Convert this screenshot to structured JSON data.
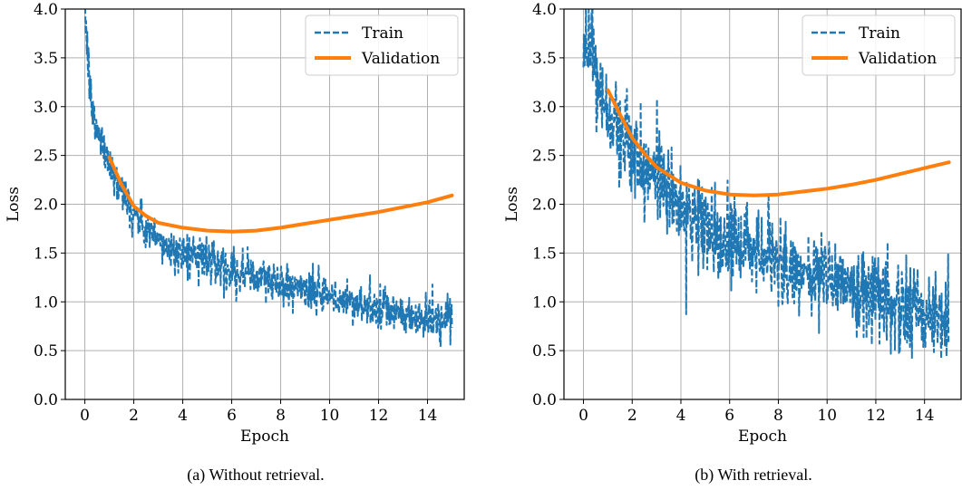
{
  "chart_data": [
    {
      "type": "line",
      "caption": "(a) Without retrieval.",
      "xlabel": "Epoch",
      "ylabel": "Loss",
      "xlim": [
        -0.8,
        15.5
      ],
      "ylim": [
        0.0,
        4.0
      ],
      "xticks": [
        0,
        2,
        4,
        6,
        8,
        10,
        12,
        14
      ],
      "yticks": [
        "0.0",
        "0.5",
        "1.0",
        "1.5",
        "2.0",
        "2.5",
        "3.0",
        "3.5",
        "4.0"
      ],
      "grid": true,
      "legend": "top-right",
      "series": [
        {
          "name": "Train",
          "style": "dashed",
          "color": "#1f77b4",
          "noise": 0.13,
          "x": [
            0.0,
            0.1,
            0.2,
            0.3,
            0.5,
            0.75,
            1.0,
            1.5,
            2.0,
            2.5,
            3.0,
            3.5,
            4.0,
            4.5,
            5.0,
            5.5,
            6.0,
            7.0,
            8.0,
            9.0,
            10.0,
            11.0,
            12.0,
            13.0,
            14.0,
            15.0
          ],
          "y": [
            4.0,
            3.6,
            3.2,
            2.95,
            2.75,
            2.6,
            2.45,
            2.15,
            1.9,
            1.75,
            1.62,
            1.55,
            1.5,
            1.48,
            1.45,
            1.4,
            1.33,
            1.26,
            1.2,
            1.12,
            1.04,
            0.98,
            0.92,
            0.86,
            0.82,
            0.78
          ]
        },
        {
          "name": "Validation",
          "style": "solid",
          "color": "#ff7f0e",
          "x": [
            1,
            1.5,
            2,
            2.5,
            3,
            4,
            5,
            6,
            7,
            8,
            9,
            10,
            11,
            12,
            13,
            14,
            15
          ],
          "y": [
            2.48,
            2.2,
            1.98,
            1.88,
            1.81,
            1.76,
            1.73,
            1.72,
            1.73,
            1.76,
            1.8,
            1.84,
            1.88,
            1.92,
            1.97,
            2.02,
            2.09
          ]
        }
      ]
    },
    {
      "type": "line",
      "caption": "(b) With retrieval.",
      "xlabel": "Epoch",
      "ylabel": "Loss",
      "xlim": [
        -0.8,
        15.5
      ],
      "ylim": [
        0.0,
        4.0
      ],
      "xticks": [
        0,
        2,
        4,
        6,
        8,
        10,
        12,
        14
      ],
      "yticks": [
        "0.0",
        "0.5",
        "1.0",
        "1.5",
        "2.0",
        "2.5",
        "3.0",
        "3.5",
        "4.0"
      ],
      "grid": true,
      "legend": "top-right",
      "series": [
        {
          "name": "Train",
          "style": "dashed",
          "color": "#1f77b4",
          "noise": 0.28,
          "x": [
            0.0,
            0.25,
            0.5,
            0.75,
            1.0,
            1.5,
            2.0,
            2.5,
            3.0,
            3.5,
            4.0,
            4.5,
            5.0,
            5.5,
            6.0,
            7.0,
            8.0,
            9.0,
            10.0,
            11.0,
            12.0,
            13.0,
            14.0,
            15.0
          ],
          "y": [
            3.75,
            3.6,
            3.4,
            3.1,
            2.9,
            2.7,
            2.55,
            2.45,
            2.3,
            2.15,
            2.0,
            1.85,
            1.75,
            1.68,
            1.6,
            1.5,
            1.4,
            1.32,
            1.24,
            1.15,
            1.06,
            0.98,
            0.9,
            0.84
          ]
        },
        {
          "name": "Validation",
          "style": "solid",
          "color": "#ff7f0e",
          "x": [
            1,
            1.5,
            2,
            2.5,
            3,
            4,
            5,
            6,
            7,
            8,
            9,
            10,
            11,
            12,
            13,
            14,
            15
          ],
          "y": [
            3.17,
            2.92,
            2.68,
            2.52,
            2.38,
            2.22,
            2.14,
            2.1,
            2.09,
            2.1,
            2.13,
            2.16,
            2.2,
            2.25,
            2.31,
            2.37,
            2.43
          ]
        }
      ]
    }
  ]
}
